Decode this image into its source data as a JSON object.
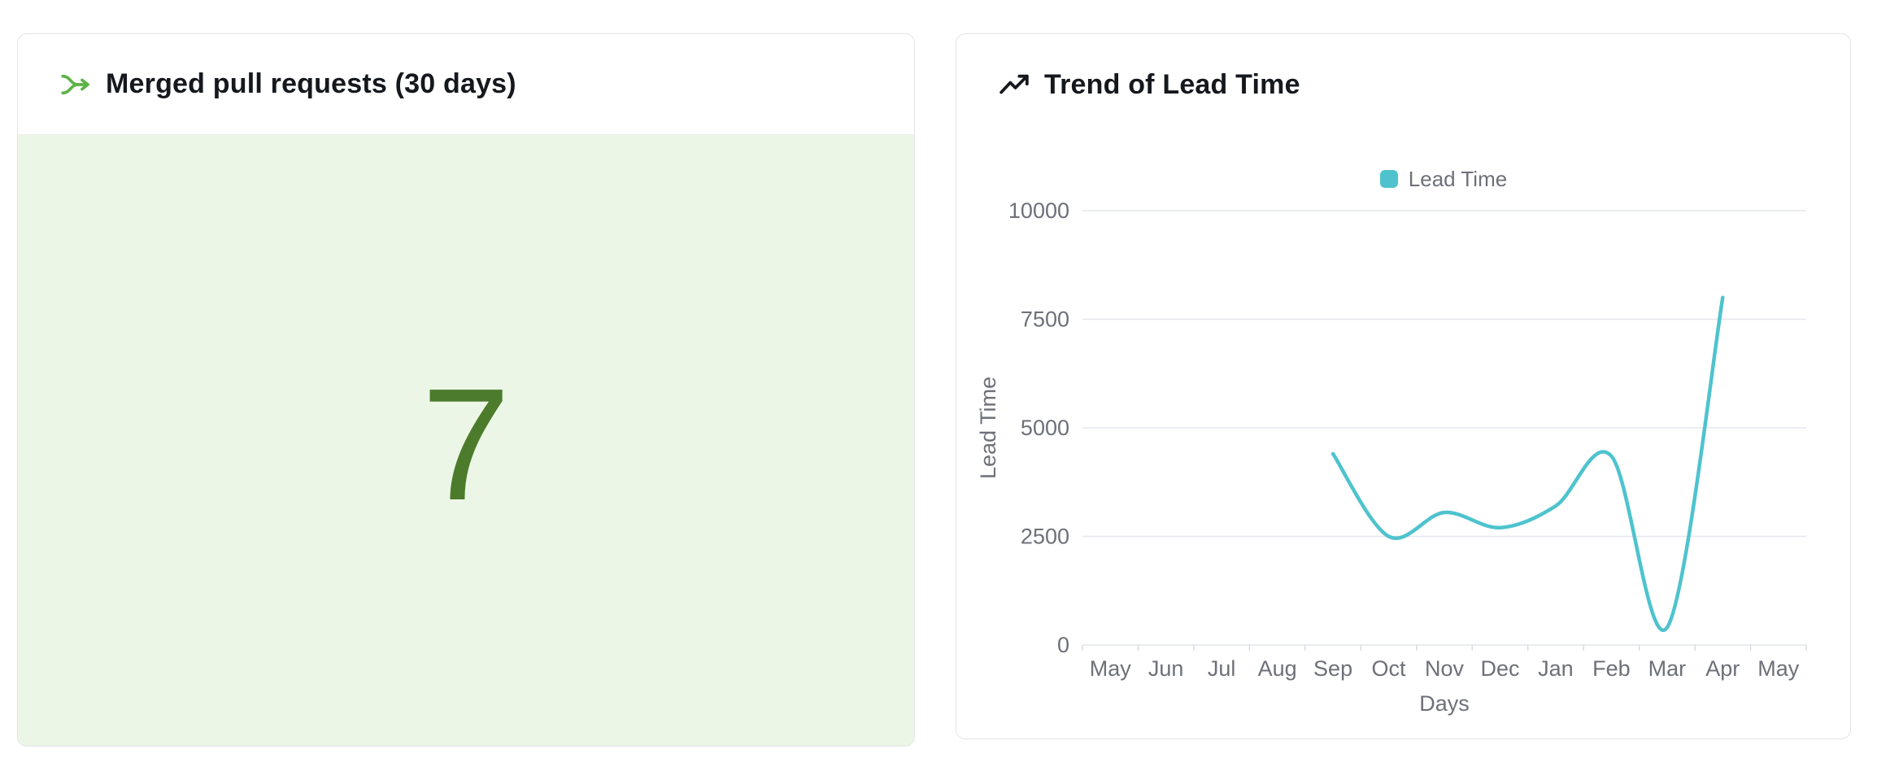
{
  "cards": {
    "merged_prs": {
      "title": "Merged pull requests (30 days)",
      "value": "7",
      "icon": "git-merge-icon",
      "icon_color": "#5cb346",
      "value_color": "#4c7c2b",
      "body_bg": "#ecf6e6"
    },
    "lead_time": {
      "title": "Trend of Lead Time",
      "icon": "trend-up-icon",
      "icon_color": "#15181d"
    }
  },
  "chart_data": {
    "type": "line",
    "smooth": true,
    "title": "Trend of Lead Time",
    "xlabel": "Days",
    "ylabel": "Lead Time",
    "categories": [
      "May",
      "Jun",
      "Jul",
      "Aug",
      "Sep",
      "Oct",
      "Nov",
      "Dec",
      "Jan",
      "Feb",
      "Mar",
      "Apr",
      "May"
    ],
    "series": [
      {
        "name": "Lead Time",
        "color": "#4ec3ce",
        "values": [
          null,
          null,
          null,
          null,
          4400,
          2500,
          3050,
          2700,
          3200,
          4350,
          400,
          8000,
          null
        ]
      }
    ],
    "ylim": [
      0,
      10000
    ],
    "yticks": [
      0,
      2500,
      5000,
      7500,
      10000
    ],
    "legend": {
      "position": "top",
      "items": [
        "Lead Time"
      ]
    },
    "grid": true,
    "axis_text_color": "#6e7079",
    "grid_color": "#e4e7ec",
    "tick_color": "#d7dbe0"
  }
}
